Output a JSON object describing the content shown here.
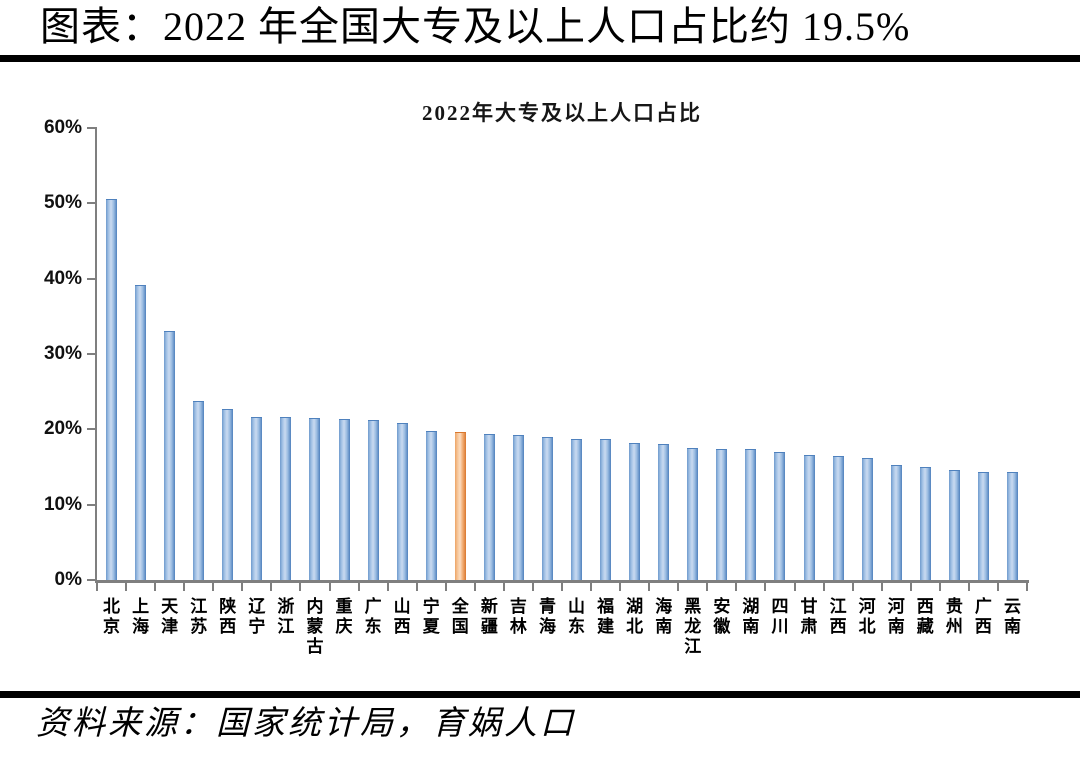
{
  "header": {
    "title": "图表：2022 年全国大专及以上人口占比约 19.5%"
  },
  "footer": {
    "source": "资料来源：国家统计局，育娲人口"
  },
  "chart_data": {
    "type": "bar",
    "title": "2022年大专及以上人口占比",
    "categories": [
      "北京",
      "上海",
      "天津",
      "江苏",
      "陕西",
      "辽宁",
      "浙江",
      "内蒙古",
      "重庆",
      "广东",
      "山西",
      "宁夏",
      "全国",
      "新疆",
      "吉林",
      "青海",
      "山东",
      "福建",
      "湖北",
      "海南",
      "黑龙江",
      "安徽",
      "湖南",
      "四川",
      "甘肃",
      "江西",
      "河北",
      "河南",
      "西藏",
      "贵州",
      "广西",
      "云南"
    ],
    "values": [
      50.4,
      39.0,
      32.9,
      23.6,
      22.6,
      21.5,
      21.5,
      21.4,
      21.3,
      21.1,
      20.7,
      19.7,
      19.5,
      19.3,
      19.1,
      18.8,
      18.6,
      18.6,
      18.0,
      17.9,
      17.4,
      17.3,
      17.3,
      16.9,
      16.4,
      16.3,
      16.1,
      15.1,
      14.9,
      14.5,
      14.2,
      14.2
    ],
    "unit": "%",
    "xlabel": "",
    "ylabel": "",
    "ylim": [
      0,
      60
    ],
    "yticks": [
      0,
      10,
      20,
      30,
      40,
      50,
      60
    ],
    "ytick_labels": [
      "0%",
      "10%",
      "20%",
      "30%",
      "40%",
      "50%",
      "60%"
    ],
    "grid": false,
    "legend_position": "none",
    "highlight_category": "全国",
    "highlight_value": 19.5,
    "colors": {
      "bar": "#4F81BD",
      "bar_light": "#C9DAF0",
      "highlight": "#D9772E",
      "highlight_light": "#FBDCC0",
      "axis": "#7F7F7F",
      "text": "#000000"
    }
  }
}
